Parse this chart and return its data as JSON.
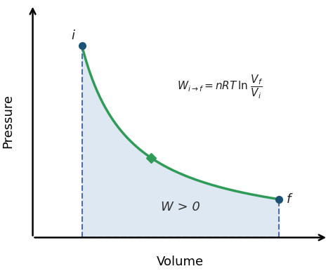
{
  "title": "",
  "xlabel": "Volume",
  "ylabel": "Pressure",
  "curve_color": "#2e9b57",
  "fill_color": "#c8d9ea",
  "fill_alpha": 0.6,
  "point_color": "#1a5276",
  "dashed_color": "#4a6fa5",
  "mid_marker_color": "#2e9b57",
  "label_i": "i",
  "label_f": "f",
  "label_W": "W > 0",
  "x_i": 1.0,
  "x_f": 5.0,
  "x_mid": 2.4,
  "C": 7.0,
  "x_axis_min": 0,
  "x_axis_max": 6.0,
  "y_axis_min": 0,
  "y_axis_max": 8.5,
  "curve_lw": 2.5,
  "dashed_lw": 1.5,
  "xlabel_fontsize": 13,
  "ylabel_fontsize": 13,
  "label_fontsize": 13,
  "eq_fontsize": 11
}
